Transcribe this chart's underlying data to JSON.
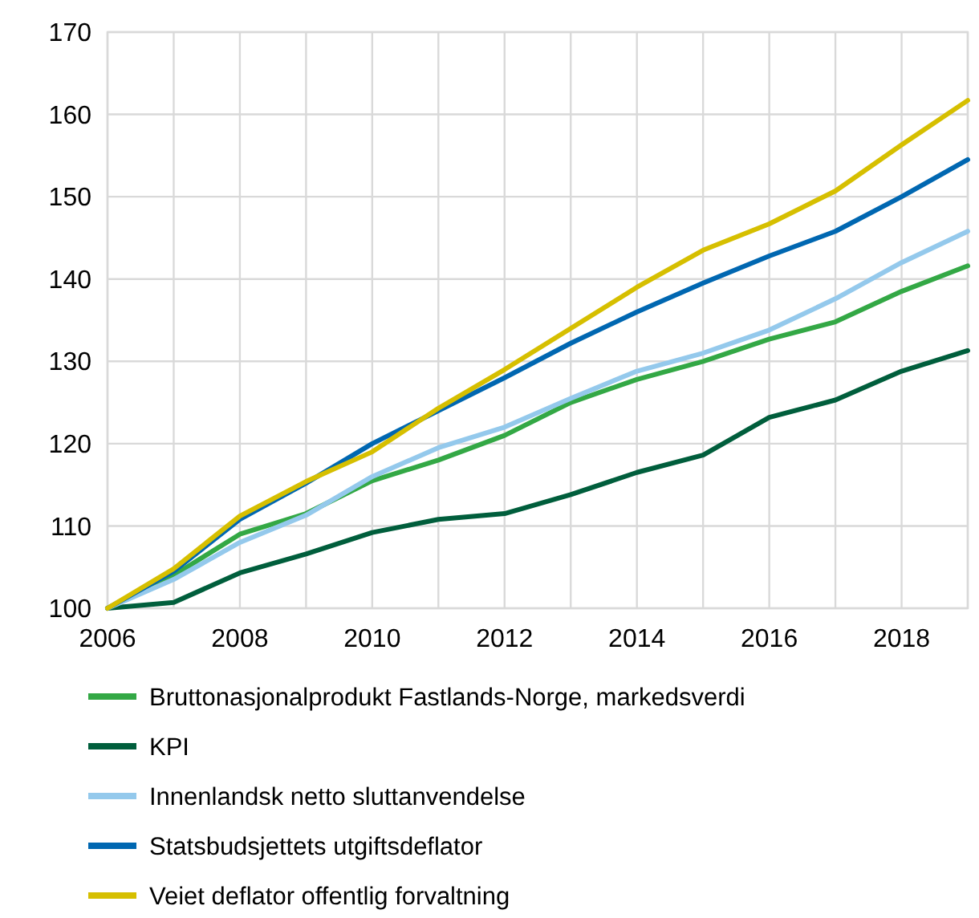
{
  "chart_data": {
    "type": "line",
    "x": [
      2006,
      2007,
      2008,
      2009,
      2010,
      2011,
      2012,
      2013,
      2014,
      2015,
      2016,
      2017,
      2018,
      2019
    ],
    "xlim": [
      2006,
      2019
    ],
    "xticks": [
      2006,
      2008,
      2010,
      2012,
      2014,
      2016,
      2018
    ],
    "ylim": [
      100,
      170
    ],
    "yticks": [
      100,
      110,
      120,
      130,
      140,
      150,
      160,
      170
    ],
    "grid": true,
    "legend": "bottom",
    "marker": "none",
    "line_style": "solid",
    "series": [
      {
        "name": "Bruttonasjonalprodukt Fastlands-Norge, markedsverdi",
        "color": "#33a845",
        "values": [
          100,
          104,
          109,
          111.5,
          115.5,
          118,
          121,
          125,
          127.8,
          130,
          132.7,
          134.8,
          138.5,
          141.6
        ]
      },
      {
        "name": "KPI",
        "color": "#005e3c",
        "values": [
          100,
          100.7,
          104.3,
          106.6,
          109.2,
          110.8,
          111.5,
          113.8,
          116.5,
          118.6,
          123.2,
          125.3,
          128.8,
          131.3
        ]
      },
      {
        "name": "Innenlandsk netto sluttanvendelse",
        "color": "#94c9ec",
        "values": [
          100,
          103.5,
          108,
          111.3,
          116,
          119.5,
          122,
          125.5,
          128.8,
          131,
          133.8,
          137.6,
          142,
          145.8
        ]
      },
      {
        "name": "Statsbudsjettets utgiftsdeflator",
        "color": "#0067b1",
        "values": [
          100,
          104.5,
          110.8,
          115.2,
          120,
          124,
          128,
          132.2,
          136,
          139.5,
          142.8,
          145.8,
          150,
          154.5
        ]
      },
      {
        "name": "Veiet deflator offentlig forvaltning",
        "color": "#d6bf00",
        "values": [
          100,
          104.8,
          111.2,
          115.4,
          119,
          124.3,
          129,
          134,
          139,
          143.5,
          146.7,
          150.7,
          156.3,
          161.7
        ]
      }
    ]
  }
}
